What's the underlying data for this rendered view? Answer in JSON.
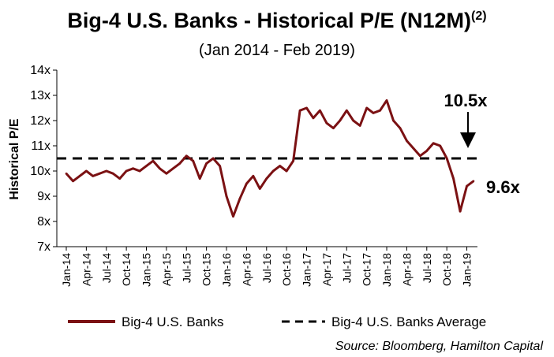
{
  "chart_data": {
    "type": "line",
    "title": "Big-4 U.S. Banks - Historical P/E (N12M)",
    "title_superscript": "(2)",
    "subtitle": "(Jan 2014 - Feb 2019)",
    "ylabel": "Historical P/E",
    "xlabel": "",
    "ylim": [
      7,
      14
    ],
    "yticks": [
      "7x",
      "8x",
      "9x",
      "10x",
      "11x",
      "12x",
      "13x",
      "14x"
    ],
    "xtick_labels": [
      "Jan-14",
      "Apr-14",
      "Jul-14",
      "Oct-14",
      "Jan-15",
      "Apr-15",
      "Jul-15",
      "Oct-15",
      "Jan-16",
      "Apr-16",
      "Jul-16",
      "Oct-16",
      "Jan-17",
      "Apr-17",
      "Jul-17",
      "Oct-17",
      "Jan-18",
      "Apr-18",
      "Jul-18",
      "Oct-18",
      "Jan-19"
    ],
    "x": [
      "Jan-14",
      "Feb-14",
      "Mar-14",
      "Apr-14",
      "May-14",
      "Jun-14",
      "Jul-14",
      "Aug-14",
      "Sep-14",
      "Oct-14",
      "Nov-14",
      "Dec-14",
      "Jan-15",
      "Feb-15",
      "Mar-15",
      "Apr-15",
      "May-15",
      "Jun-15",
      "Jul-15",
      "Aug-15",
      "Sep-15",
      "Oct-15",
      "Nov-15",
      "Dec-15",
      "Jan-16",
      "Feb-16",
      "Mar-16",
      "Apr-16",
      "May-16",
      "Jun-16",
      "Jul-16",
      "Aug-16",
      "Sep-16",
      "Oct-16",
      "Nov-16",
      "Dec-16",
      "Jan-17",
      "Feb-17",
      "Mar-17",
      "Apr-17",
      "May-17",
      "Jun-17",
      "Jul-17",
      "Aug-17",
      "Sep-17",
      "Oct-17",
      "Nov-17",
      "Dec-17",
      "Jan-18",
      "Feb-18",
      "Mar-18",
      "Apr-18",
      "May-18",
      "Jun-18",
      "Jul-18",
      "Aug-18",
      "Sep-18",
      "Oct-18",
      "Nov-18",
      "Dec-18",
      "Jan-19",
      "Feb-19"
    ],
    "series": [
      {
        "name": "Big-4 U.S. Banks",
        "color": "#7b1113",
        "values": [
          9.9,
          9.6,
          9.8,
          10.0,
          9.8,
          9.9,
          10.0,
          9.9,
          9.7,
          10.0,
          10.1,
          10.0,
          10.2,
          10.4,
          10.1,
          9.9,
          10.1,
          10.3,
          10.6,
          10.4,
          9.7,
          10.3,
          10.5,
          10.2,
          9.0,
          8.2,
          8.9,
          9.5,
          9.8,
          9.3,
          9.7,
          10.0,
          10.2,
          10.0,
          10.4,
          12.4,
          12.5,
          12.1,
          12.4,
          11.9,
          11.7,
          12.0,
          12.4,
          12.0,
          11.8,
          12.5,
          12.3,
          12.4,
          12.8,
          12.0,
          11.7,
          11.2,
          10.9,
          10.6,
          10.8,
          11.1,
          11.0,
          10.5,
          9.7,
          8.4,
          9.4,
          9.6
        ]
      },
      {
        "name": "Big-4 U.S. Banks Average",
        "color": "#000000",
        "style": "dashed",
        "value": 10.5
      }
    ],
    "legend": {
      "placement": "bottom",
      "items": [
        "Big-4 U.S. Banks",
        "Big-4 U.S. Banks Average"
      ]
    },
    "annotations": {
      "average_label": "10.5x",
      "latest_label": "9.6x"
    },
    "source": "Source: Bloomberg, Hamilton Capital",
    "grid": false
  }
}
